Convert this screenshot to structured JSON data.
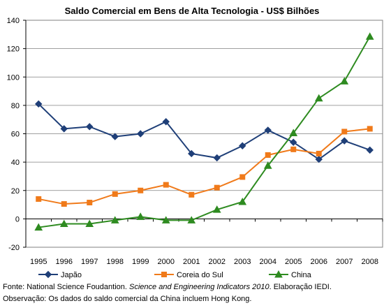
{
  "chart_data": {
    "type": "line",
    "title": "Saldo Comercial em Bens de Alta Tecnologia - US$ Bilhões",
    "x": [
      "1995",
      "1996",
      "1997",
      "1998",
      "1999",
      "2000",
      "2001",
      "2002",
      "2003",
      "2004",
      "2005",
      "2006",
      "2007",
      "2008"
    ],
    "ylim": [
      -20,
      140
    ],
    "yticks": [
      -20,
      0,
      20,
      40,
      60,
      80,
      100,
      120,
      140
    ],
    "grid": true,
    "legend_position": "bottom",
    "series": [
      {
        "name": "Japão",
        "color": "#1f3f78",
        "marker": "diamond",
        "values": [
          81,
          63.5,
          65,
          58,
          60,
          68.5,
          46,
          43,
          51.5,
          62.5,
          54,
          42,
          55,
          48.5
        ]
      },
      {
        "name": "Coreia do Sul",
        "color": "#f07a1a",
        "marker": "square",
        "values": [
          14,
          10.5,
          11.5,
          17.5,
          20,
          24,
          17,
          22,
          29.5,
          45,
          49,
          46,
          61.5,
          63.5
        ]
      },
      {
        "name": "China",
        "color": "#2e8b20",
        "marker": "triangle",
        "values": [
          -6,
          -3.5,
          -3.5,
          -1,
          1.5,
          -1,
          -1,
          6.5,
          12,
          37.5,
          60.5,
          85,
          97,
          128.5
        ]
      }
    ]
  },
  "footer": {
    "source_prefix": "Fonte: National Science Foudantion. ",
    "source_title": "Science and Engineering Indicators 2010",
    "source_suffix": ". Elaboração IEDI.",
    "note": "Observação: Os dados do saldo comercial da China incluem Hong Kong."
  }
}
